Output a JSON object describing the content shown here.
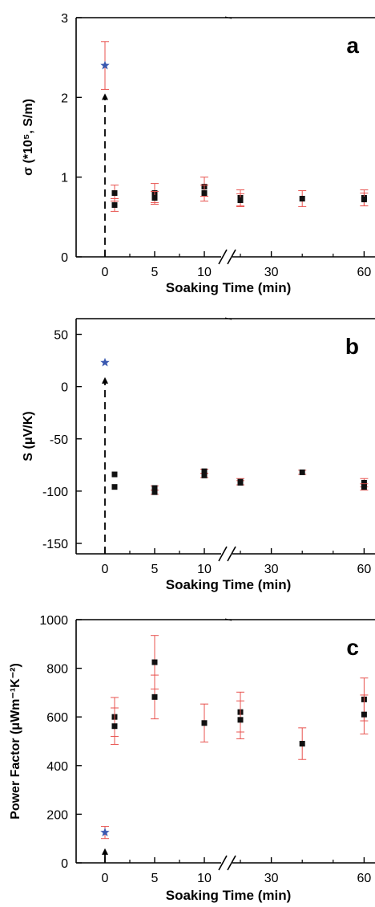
{
  "colors": {
    "axis": "#000000",
    "marker": "#111111",
    "error_bar": "#e8534f",
    "star": "#3a58b0",
    "arrow": "#000000"
  },
  "chart_data": [
    {
      "type": "scatter",
      "panel_label": "a",
      "xlabel": "Soaking Time (min)",
      "ylabel": "σ (*10⁵, S/m)",
      "ylim": [
        0,
        3
      ],
      "yticks": [
        "0",
        "1",
        "2",
        "3"
      ],
      "xticks": [
        "0",
        "5",
        "10",
        "30",
        "60"
      ],
      "x_axis_break": "between 10 and 30",
      "grid": false,
      "series": [
        {
          "marker": "star",
          "points": [
            {
              "x": 0,
              "y": 2.4,
              "err": 0.3
            }
          ]
        },
        {
          "marker": "square",
          "points": [
            {
              "x": 1,
              "y": 0.8,
              "err": 0.1
            },
            {
              "x": 1,
              "y": 0.65,
              "err": 0.08
            },
            {
              "x": 5,
              "y": 0.8,
              "err": 0.12
            },
            {
              "x": 5,
              "y": 0.74,
              "err": 0.08
            },
            {
              "x": 10,
              "y": 0.88,
              "err": 0.12
            },
            {
              "x": 10,
              "y": 0.8,
              "err": 0.1
            },
            {
              "x": 20,
              "y": 0.74,
              "err": 0.1
            },
            {
              "x": 20,
              "y": 0.71,
              "err": 0.08
            },
            {
              "x": 40,
              "y": 0.73,
              "err": 0.1
            },
            {
              "x": 60,
              "y": 0.74,
              "err": 0.1
            },
            {
              "x": 60,
              "y": 0.72,
              "err": 0.08
            }
          ]
        }
      ],
      "arrow": {
        "x": 0,
        "from": 0,
        "to": 2.05,
        "style": "dashed"
      }
    },
    {
      "type": "scatter",
      "panel_label": "b",
      "xlabel": "Soaking Time (min)",
      "ylabel": "S (μV/K)",
      "ylim": [
        -160,
        65
      ],
      "yticks": [
        "50",
        "0",
        "-50",
        "-100",
        "-150"
      ],
      "xticks": [
        "0",
        "5",
        "10",
        "30",
        "60"
      ],
      "x_axis_break": "between 10 and 30",
      "grid": false,
      "series": [
        {
          "marker": "star",
          "points": [
            {
              "x": 0,
              "y": 23,
              "err": 0
            }
          ]
        },
        {
          "marker": "square",
          "points": [
            {
              "x": 1,
              "y": -84,
              "err": 0
            },
            {
              "x": 1,
              "y": -96,
              "err": 0
            },
            {
              "x": 5,
              "y": -97,
              "err": 2
            },
            {
              "x": 5,
              "y": -101,
              "err": 2
            },
            {
              "x": 10,
              "y": -81,
              "err": 2
            },
            {
              "x": 10,
              "y": -85,
              "err": 2
            },
            {
              "x": 20,
              "y": -91,
              "err": 3
            },
            {
              "x": 20,
              "y": -92,
              "err": 2
            },
            {
              "x": 40,
              "y": -82,
              "err": 2
            },
            {
              "x": 60,
              "y": -92,
              "err": 4
            },
            {
              "x": 60,
              "y": -96,
              "err": 3
            }
          ]
        }
      ],
      "arrow": {
        "x": 0,
        "from": -160,
        "to": 9,
        "style": "dashed"
      }
    },
    {
      "type": "scatter",
      "panel_label": "c",
      "xlabel": "Soaking Time (min)",
      "ylabel": "Power Factor (μWm⁻¹K⁻²)",
      "ylim": [
        0,
        1000
      ],
      "yticks": [
        "0",
        "200",
        "400",
        "600",
        "800",
        "1000"
      ],
      "xticks": [
        "0",
        "5",
        "10",
        "30",
        "60"
      ],
      "x_axis_break": "between 10 and 30",
      "grid": false,
      "series": [
        {
          "marker": "star",
          "points": [
            {
              "x": 0,
              "y": 125,
              "err": 25
            }
          ]
        },
        {
          "marker": "square",
          "points": [
            {
              "x": 1,
              "y": 600,
              "err": 80
            },
            {
              "x": 1,
              "y": 562,
              "err": 75
            },
            {
              "x": 5,
              "y": 825,
              "err": 110
            },
            {
              "x": 5,
              "y": 682,
              "err": 90
            },
            {
              "x": 10,
              "y": 575,
              "err": 78
            },
            {
              "x": 20,
              "y": 620,
              "err": 82
            },
            {
              "x": 20,
              "y": 588,
              "err": 78
            },
            {
              "x": 40,
              "y": 490,
              "err": 65
            },
            {
              "x": 60,
              "y": 672,
              "err": 88
            },
            {
              "x": 60,
              "y": 610,
              "err": 80
            }
          ]
        }
      ],
      "arrow": {
        "x": 0,
        "from": 0,
        "to": 60,
        "style": "solid"
      }
    }
  ]
}
